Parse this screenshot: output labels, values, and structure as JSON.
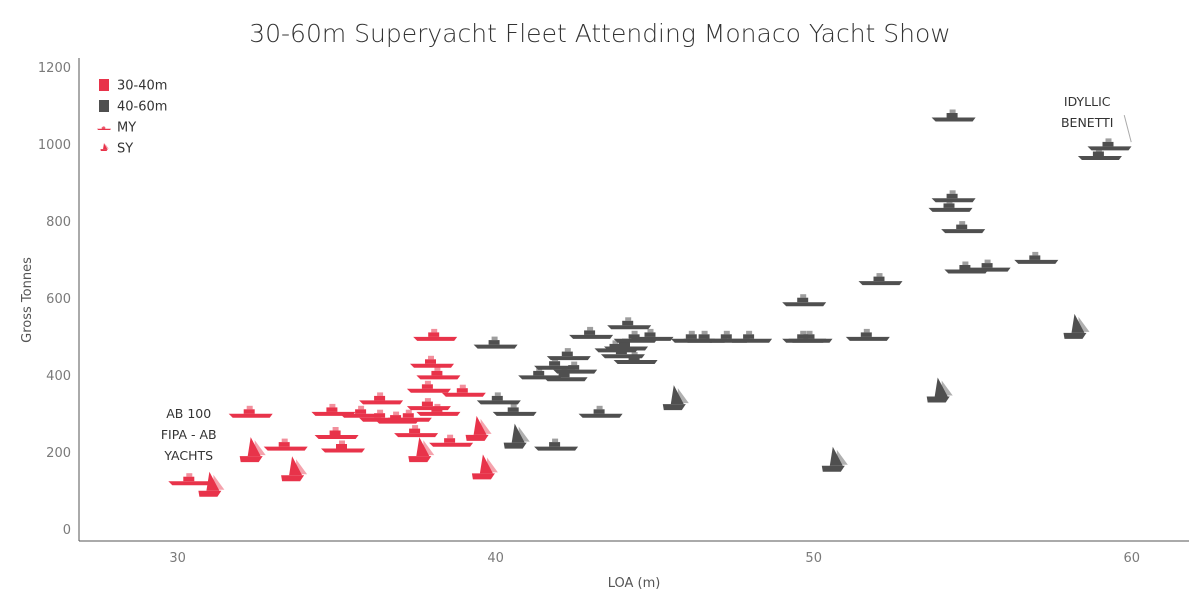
{
  "chart_data": {
    "type": "scatter",
    "title": "30-60m Superyacht Fleet Attending Monaco Yacht Show",
    "xlabel": "LOA (m)",
    "ylabel": "Gross Tonnes",
    "xlim": [
      26.9,
      61.8
    ],
    "ylim": [
      -30,
      1225
    ],
    "xticks": [
      30,
      40,
      50,
      60
    ],
    "yticks": [
      0,
      200,
      400,
      600,
      800,
      1000,
      1200
    ],
    "grid": false,
    "legend_position": "top-left",
    "legend": [
      {
        "label": "30-40m",
        "kind": "color",
        "color": "#e8334a"
      },
      {
        "label": "40-60m",
        "kind": "color",
        "color": "#4f4f4f"
      },
      {
        "label": "MY",
        "kind": "shape",
        "shape": "motor-yacht"
      },
      {
        "label": "SY",
        "kind": "shape",
        "shape": "sail-yacht"
      }
    ],
    "colors": {
      "30-40m": "#e8334a",
      "40-60m": "#4f4f4f"
    },
    "series": [
      {
        "name": "30-40m",
        "points": [
          {
            "x": 30.4,
            "y": 115,
            "type": "MY"
          },
          {
            "x": 31.0,
            "y": 85,
            "type": "SY"
          },
          {
            "x": 32.3,
            "y": 290,
            "type": "MY"
          },
          {
            "x": 32.3,
            "y": 175,
            "type": "SY"
          },
          {
            "x": 33.4,
            "y": 205,
            "type": "MY"
          },
          {
            "x": 33.6,
            "y": 125,
            "type": "SY"
          },
          {
            "x": 34.9,
            "y": 295,
            "type": "MY"
          },
          {
            "x": 35.0,
            "y": 235,
            "type": "MY"
          },
          {
            "x": 35.2,
            "y": 200,
            "type": "MY"
          },
          {
            "x": 35.8,
            "y": 290,
            "type": "MY"
          },
          {
            "x": 36.4,
            "y": 325,
            "type": "MY"
          },
          {
            "x": 36.4,
            "y": 280,
            "type": "MY"
          },
          {
            "x": 36.9,
            "y": 275,
            "type": "MY"
          },
          {
            "x": 37.3,
            "y": 280,
            "type": "MY"
          },
          {
            "x": 37.5,
            "y": 240,
            "type": "MY"
          },
          {
            "x": 37.6,
            "y": 175,
            "type": "SY"
          },
          {
            "x": 37.9,
            "y": 310,
            "type": "MY"
          },
          {
            "x": 37.9,
            "y": 355,
            "type": "MY"
          },
          {
            "x": 38.0,
            "y": 420,
            "type": "MY"
          },
          {
            "x": 38.2,
            "y": 390,
            "type": "MY"
          },
          {
            "x": 38.1,
            "y": 490,
            "type": "MY"
          },
          {
            "x": 38.2,
            "y": 295,
            "type": "MY"
          },
          {
            "x": 38.6,
            "y": 215,
            "type": "MY"
          },
          {
            "x": 39.0,
            "y": 345,
            "type": "MY"
          },
          {
            "x": 39.4,
            "y": 230,
            "type": "SY"
          },
          {
            "x": 39.6,
            "y": 130,
            "type": "SY"
          }
        ]
      },
      {
        "name": "40-60m",
        "points": [
          {
            "x": 40.0,
            "y": 470,
            "type": "MY"
          },
          {
            "x": 40.1,
            "y": 325,
            "type": "MY"
          },
          {
            "x": 40.6,
            "y": 295,
            "type": "MY"
          },
          {
            "x": 40.6,
            "y": 210,
            "type": "SY"
          },
          {
            "x": 41.4,
            "y": 390,
            "type": "MY"
          },
          {
            "x": 41.9,
            "y": 415,
            "type": "MY"
          },
          {
            "x": 41.9,
            "y": 205,
            "type": "MY"
          },
          {
            "x": 42.2,
            "y": 385,
            "type": "MY"
          },
          {
            "x": 42.3,
            "y": 440,
            "type": "MY"
          },
          {
            "x": 42.5,
            "y": 405,
            "type": "MY"
          },
          {
            "x": 43.0,
            "y": 495,
            "type": "MY"
          },
          {
            "x": 43.3,
            "y": 290,
            "type": "MY"
          },
          {
            "x": 43.8,
            "y": 460,
            "type": "MY"
          },
          {
            "x": 44.0,
            "y": 445,
            "type": "MY"
          },
          {
            "x": 44.1,
            "y": 465,
            "type": "MY"
          },
          {
            "x": 44.2,
            "y": 520,
            "type": "MY"
          },
          {
            "x": 44.4,
            "y": 485,
            "type": "MY"
          },
          {
            "x": 44.4,
            "y": 430,
            "type": "MY"
          },
          {
            "x": 44.9,
            "y": 490,
            "type": "MY"
          },
          {
            "x": 45.6,
            "y": 310,
            "type": "SY"
          },
          {
            "x": 46.2,
            "y": 485,
            "type": "MY"
          },
          {
            "x": 46.6,
            "y": 485,
            "type": "MY"
          },
          {
            "x": 47.3,
            "y": 485,
            "type": "MY"
          },
          {
            "x": 48.0,
            "y": 485,
            "type": "MY"
          },
          {
            "x": 49.7,
            "y": 580,
            "type": "MY"
          },
          {
            "x": 49.7,
            "y": 485,
            "type": "MY"
          },
          {
            "x": 49.9,
            "y": 485,
            "type": "MY"
          },
          {
            "x": 50.6,
            "y": 150,
            "type": "SY"
          },
          {
            "x": 51.7,
            "y": 490,
            "type": "MY"
          },
          {
            "x": 52.1,
            "y": 635,
            "type": "MY"
          },
          {
            "x": 53.9,
            "y": 330,
            "type": "SY"
          },
          {
            "x": 54.3,
            "y": 825,
            "type": "MY"
          },
          {
            "x": 54.4,
            "y": 850,
            "type": "MY"
          },
          {
            "x": 54.4,
            "y": 1060,
            "type": "MY"
          },
          {
            "x": 54.7,
            "y": 770,
            "type": "MY"
          },
          {
            "x": 54.8,
            "y": 665,
            "type": "MY"
          },
          {
            "x": 55.5,
            "y": 670,
            "type": "MY"
          },
          {
            "x": 57.0,
            "y": 690,
            "type": "MY"
          },
          {
            "x": 58.2,
            "y": 495,
            "type": "SY"
          },
          {
            "x": 59.0,
            "y": 960,
            "type": "MY"
          },
          {
            "x": 59.3,
            "y": 985,
            "type": "MY"
          }
        ]
      }
    ],
    "annotations": [
      {
        "lines": [
          "AB 100",
          "FIPA - AB",
          "YACHTS"
        ],
        "x": 30.35,
        "y": 290
      },
      {
        "lines": [
          "IDYLLIC",
          "BENETTI"
        ],
        "x": 58.6,
        "y": 1100
      }
    ]
  }
}
